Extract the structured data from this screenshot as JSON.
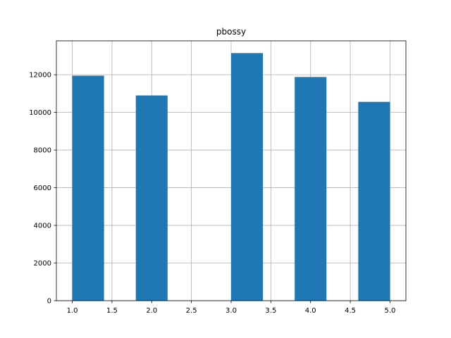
{
  "chart_data": {
    "type": "bar",
    "title": "pbossy",
    "xlabel": "",
    "ylabel": "",
    "bins": [
      {
        "start": 1.0,
        "end": 1.4,
        "count": 11950
      },
      {
        "start": 1.4,
        "end": 1.8,
        "count": 0
      },
      {
        "start": 1.8,
        "end": 2.2,
        "count": 10900
      },
      {
        "start": 2.2,
        "end": 2.6,
        "count": 0
      },
      {
        "start": 2.6,
        "end": 3.0,
        "count": 0
      },
      {
        "start": 3.0,
        "end": 3.4,
        "count": 13150
      },
      {
        "start": 3.4,
        "end": 3.8,
        "count": 0
      },
      {
        "start": 3.8,
        "end": 4.2,
        "count": 11880
      },
      {
        "start": 4.2,
        "end": 4.6,
        "count": 0
      },
      {
        "start": 4.6,
        "end": 5.0,
        "count": 10560
      }
    ],
    "xlim": [
      0.8,
      5.2
    ],
    "ylim": [
      0,
      13800
    ],
    "xticks": [
      1.0,
      1.5,
      2.0,
      2.5,
      3.0,
      3.5,
      4.0,
      4.5,
      5.0
    ],
    "xtick_labels": [
      "1.0",
      "1.5",
      "2.0",
      "2.5",
      "3.0",
      "3.5",
      "4.0",
      "4.5",
      "5.0"
    ],
    "yticks": [
      0,
      2000,
      4000,
      6000,
      8000,
      10000,
      12000
    ],
    "ytick_labels": [
      "0",
      "2000",
      "4000",
      "6000",
      "8000",
      "10000",
      "12000"
    ],
    "grid": true,
    "bar_color": "#1f77b4",
    "grid_color": "#b0b0b0",
    "axis_color": "#000000"
  }
}
